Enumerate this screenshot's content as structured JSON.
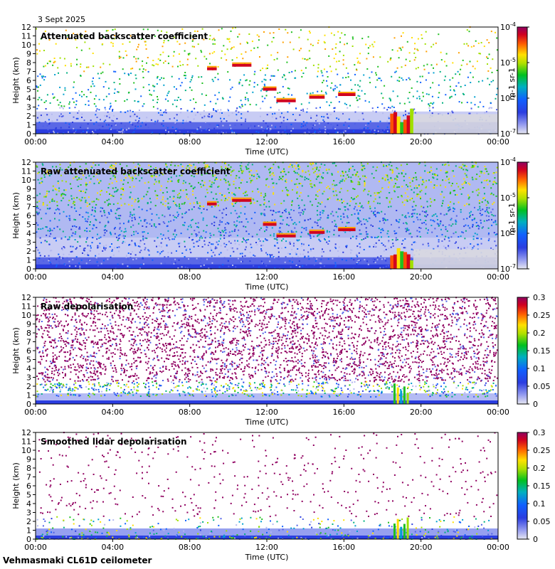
{
  "date_label": "3 Sept 2025",
  "footer": "Vehmasmaki CL61D ceilometer",
  "chart_data": [
    {
      "type": "heatmap",
      "title": "Attenuated backscatter coefficient",
      "xlabel": "Time (UTC)",
      "ylabel": "Height (km)",
      "x_ticks": [
        "00:00",
        "04:00",
        "08:00",
        "12:00",
        "16:00",
        "20:00",
        "00:00"
      ],
      "y_ticks": [
        "0",
        "1",
        "2",
        "3",
        "4",
        "5",
        "6",
        "7",
        "8",
        "9",
        "10",
        "11",
        "12"
      ],
      "ylim": [
        0,
        12
      ],
      "colorbar": {
        "scale": "log",
        "range": [
          1e-07,
          0.0001
        ],
        "ticks": [
          "10-7",
          "10-6",
          "10-5",
          "10-4"
        ],
        "unit": "m-1 sr-1"
      },
      "features": {
        "boundary_layer_top_km": 2.2,
        "mid_clouds": [
          {
            "t_start_h": 8.9,
            "t_end_h": 9.4,
            "height_km": 7.3
          },
          {
            "t_start_h": 10.2,
            "t_end_h": 11.2,
            "height_km": 7.7
          },
          {
            "t_start_h": 11.8,
            "t_end_h": 12.5,
            "height_km": 5.0
          },
          {
            "t_start_h": 12.5,
            "t_end_h": 13.5,
            "height_km": 3.7
          },
          {
            "t_start_h": 14.2,
            "t_end_h": 15.0,
            "height_km": 4.1
          },
          {
            "t_start_h": 15.7,
            "t_end_h": 16.6,
            "height_km": 4.4
          }
        ],
        "low_cloud_strong_backscatter": {
          "t_start_h": 18.4,
          "t_end_h": 19.6,
          "height_km_max": 3.0
        }
      }
    },
    {
      "type": "heatmap",
      "title": "Raw attenuated backscatter coefficient",
      "xlabel": "Time (UTC)",
      "ylabel": "Height (km)",
      "x_ticks": [
        "00:00",
        "04:00",
        "08:00",
        "12:00",
        "16:00",
        "20:00",
        "00:00"
      ],
      "y_ticks": [
        "0",
        "1",
        "2",
        "3",
        "4",
        "5",
        "6",
        "7",
        "8",
        "9",
        "10",
        "11",
        "12"
      ],
      "ylim": [
        0,
        12
      ],
      "colorbar": {
        "scale": "log",
        "range": [
          1e-07,
          0.0001
        ],
        "ticks": [
          "10-7",
          "10-6",
          "10-5",
          "10-4"
        ],
        "unit": "m-1 sr-1"
      }
    },
    {
      "type": "heatmap",
      "title": "Raw depolarisation",
      "xlabel": "Time (UTC)",
      "ylabel": "Height (km)",
      "x_ticks": [
        "00:00",
        "04:00",
        "08:00",
        "12:00",
        "16:00",
        "20:00",
        "00:00"
      ],
      "y_ticks": [
        "0",
        "1",
        "2",
        "3",
        "4",
        "5",
        "6",
        "7",
        "8",
        "9",
        "10",
        "11",
        "12"
      ],
      "ylim": [
        0,
        12
      ],
      "colorbar": {
        "scale": "linear",
        "range": [
          0,
          0.3
        ],
        "ticks": [
          "0",
          "0.05",
          "0.1",
          "0.15",
          "0.2",
          "0.25",
          "0.3"
        ]
      }
    },
    {
      "type": "heatmap",
      "title": "Smoothed lidar depolarisation",
      "xlabel": "Time (UTC)",
      "ylabel": "Height (km)",
      "x_ticks": [
        "00:00",
        "04:00",
        "08:00",
        "12:00",
        "16:00",
        "20:00",
        "00:00"
      ],
      "y_ticks": [
        "0",
        "1",
        "2",
        "3",
        "4",
        "5",
        "6",
        "7",
        "8",
        "9",
        "10",
        "11",
        "12"
      ],
      "ylim": [
        0,
        12
      ],
      "colorbar": {
        "scale": "linear",
        "range": [
          0,
          0.3
        ],
        "ticks": [
          "0",
          "0.05",
          "0.1",
          "0.15",
          "0.2",
          "0.25",
          "0.3"
        ]
      }
    }
  ]
}
